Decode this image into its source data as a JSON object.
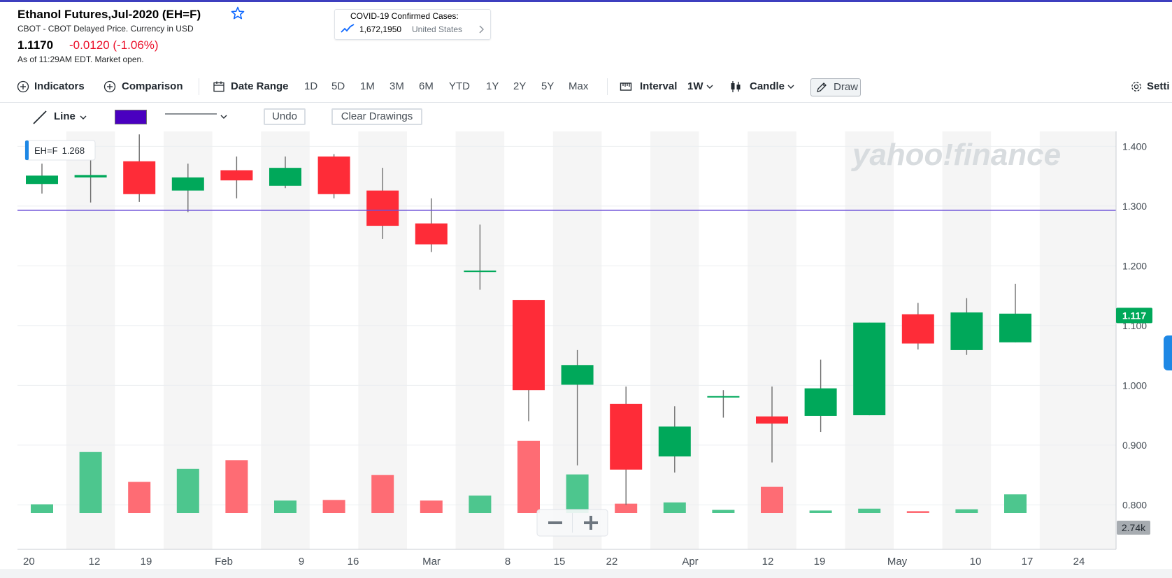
{
  "header": {
    "title": "Ethanol Futures,Jul-2020 (EH=F)",
    "subtitle": "CBOT - CBOT Delayed Price. Currency in USD",
    "price": "1.1170",
    "change": "-0.0120 (-1.06%)",
    "as_of": "As of 11:29AM EDT. Market open."
  },
  "covid_widget": {
    "title": "COVID-19 Confirmed Cases:",
    "value": "1,672,1950",
    "region": "United States"
  },
  "toolbar": {
    "indicators": "Indicators",
    "comparison": "Comparison",
    "date_range": "Date Range",
    "ranges": [
      "1D",
      "5D",
      "1M",
      "3M",
      "6M",
      "YTD",
      "1Y",
      "2Y",
      "5Y",
      "Max"
    ],
    "interval_label": "Interval",
    "interval_value": "1W",
    "chart_type": "Candle",
    "draw": "Draw",
    "settings": "Setti"
  },
  "drawing_toolbar": {
    "tool": "Line",
    "color": "#4a00c0",
    "undo": "Undo",
    "clear": "Clear Drawings"
  },
  "colors": {
    "up": "#00a85a",
    "down": "#fe2c38",
    "up_volume": "#4dc68e",
    "down_volume": "#fe6c74",
    "drawn_line": "#6b4fd8",
    "watermark": "#d8dcdf"
  },
  "chart_data": {
    "type": "candlestick",
    "symbol": "EH=F",
    "watermark": "yahoo!finance",
    "tooltip": {
      "label": "EH=F",
      "value": "1.268"
    },
    "last_price_label": "1.117",
    "volume_label": "2.74k",
    "ylim": [
      0.77,
      1.425
    ],
    "y_ticks": [
      1.4,
      1.3,
      1.2,
      1.1,
      1.0,
      0.9,
      0.8
    ],
    "y_tick_labels": [
      "1.400",
      "1.300",
      "1.200",
      "1.100",
      "1.000",
      "0.900",
      "0.800"
    ],
    "x_tick_labels": [
      "20",
      "12",
      "19",
      "Feb",
      "9",
      "16",
      "Mar",
      "8",
      "15",
      "22",
      "Apr",
      "12",
      "19",
      "May",
      "10",
      "17",
      "24"
    ],
    "horizontal_line": 1.293,
    "candles": [
      {
        "open": 1.337,
        "high": 1.371,
        "low": 1.321,
        "close": 1.351,
        "volume": 0.14
      },
      {
        "open": 1.348,
        "high": 1.39,
        "low": 1.306,
        "close": 1.352,
        "volume": 0.98
      },
      {
        "open": 1.375,
        "high": 1.42,
        "low": 1.307,
        "close": 1.32,
        "volume": 0.5
      },
      {
        "open": 1.326,
        "high": 1.371,
        "low": 1.29,
        "close": 1.348,
        "volume": 0.71
      },
      {
        "open": 1.36,
        "high": 1.383,
        "low": 1.313,
        "close": 1.343,
        "volume": 0.85
      },
      {
        "open": 1.334,
        "high": 1.383,
        "low": 1.33,
        "close": 1.364,
        "volume": 0.2
      },
      {
        "open": 1.383,
        "high": 1.387,
        "low": 1.313,
        "close": 1.32,
        "volume": 0.21
      },
      {
        "open": 1.326,
        "high": 1.364,
        "low": 1.245,
        "close": 1.267,
        "volume": 0.61
      },
      {
        "open": 1.271,
        "high": 1.313,
        "low": 1.223,
        "close": 1.236,
        "volume": 0.2
      },
      {
        "open": 1.192,
        "high": 1.269,
        "low": 1.16,
        "close": 1.192,
        "volume": 0.28
      },
      {
        "open": 1.143,
        "high": 1.143,
        "low": 0.94,
        "close": 0.992,
        "volume": 1.16
      },
      {
        "open": 1.001,
        "high": 1.059,
        "low": 0.866,
        "close": 1.034,
        "volume": 0.62
      },
      {
        "open": 0.969,
        "high": 0.998,
        "low": 0.8,
        "close": 0.859,
        "volume": 0.15
      },
      {
        "open": 0.881,
        "high": 0.965,
        "low": 0.854,
        "close": 0.931,
        "volume": 0.17
      },
      {
        "open": 0.98,
        "high": 0.992,
        "low": 0.946,
        "close": 0.982,
        "volume": 0.05
      },
      {
        "open": 0.948,
        "high": 0.998,
        "low": 0.871,
        "close": 0.936,
        "volume": 0.42
      },
      {
        "open": 0.949,
        "high": 1.043,
        "low": 0.922,
        "close": 0.995,
        "volume": 0.04
      },
      {
        "open": 0.95,
        "high": 1.105,
        "low": 0.95,
        "close": 1.105,
        "volume": 0.07
      },
      {
        "open": 1.119,
        "high": 1.138,
        "low": 1.06,
        "close": 1.07,
        "volume": 0.03
      },
      {
        "open": 1.059,
        "high": 1.146,
        "low": 1.051,
        "close": 1.122,
        "volume": 0.06
      },
      {
        "open": 1.072,
        "high": 1.17,
        "low": 1.072,
        "close": 1.12,
        "volume": 0.3
      }
    ]
  }
}
